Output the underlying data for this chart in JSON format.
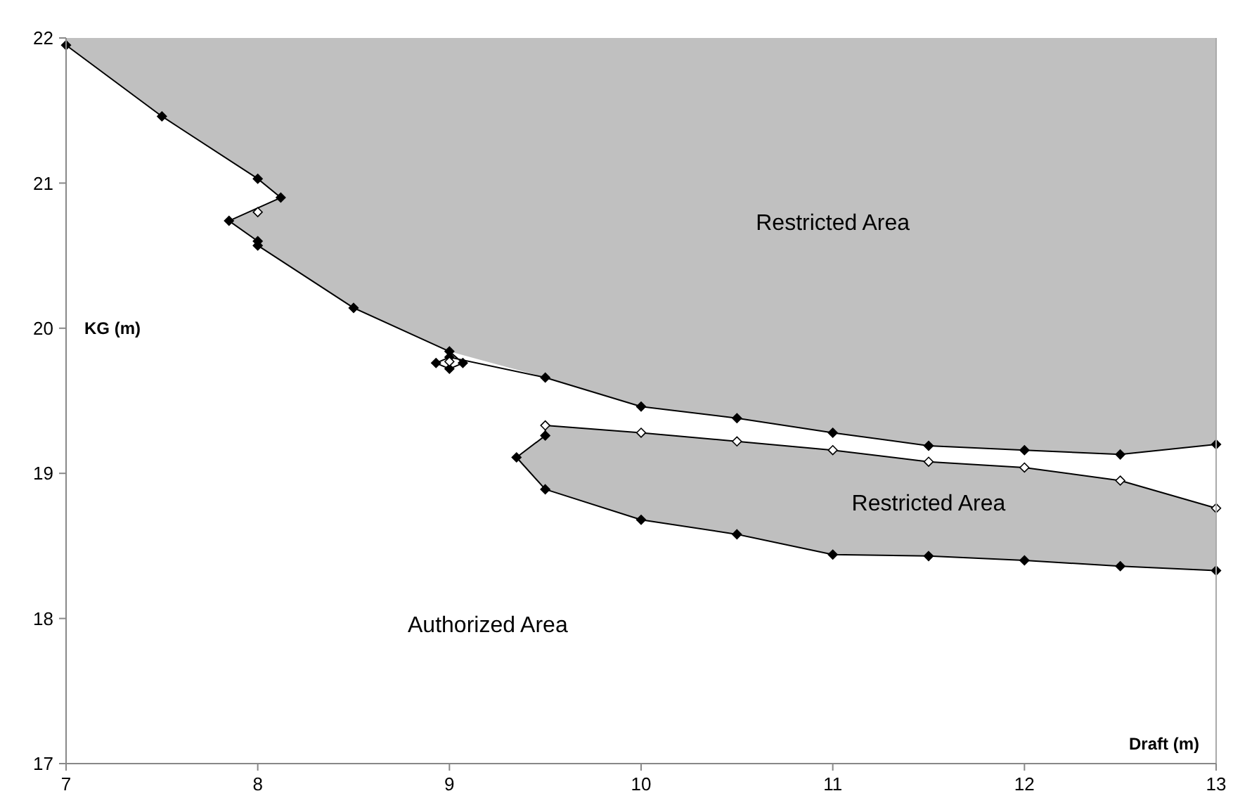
{
  "chart_data": {
    "type": "line",
    "xlabel": "Draft (m)",
    "ylabel": "KG (m)",
    "xlim": [
      7,
      13
    ],
    "xticks": [
      7,
      8,
      9,
      10,
      11,
      12,
      13
    ],
    "ylim": [
      17,
      22
    ],
    "yticks": [
      17,
      18,
      19,
      20,
      21,
      22
    ],
    "grid": false,
    "annotations": [
      "Restricted Area",
      "Restricted Area",
      "Authorized Area"
    ],
    "series": [
      {
        "type": "area",
        "color": "#c0c0c0",
        "x": [
          7,
          7.5,
          8,
          8.12,
          7.85,
          8,
          8,
          8.5,
          9,
          9.5,
          10,
          10.5,
          11,
          11.5,
          12,
          12.5,
          13,
          13,
          7
        ],
        "values": [
          21.95,
          21.46,
          21.03,
          20.9,
          20.74,
          20.6,
          20.57,
          20.14,
          19.84,
          19.66,
          19.46,
          19.38,
          19.28,
          19.19,
          19.16,
          19.13,
          19.2,
          22,
          22
        ]
      },
      {
        "type": "area",
        "color": "#bfbfbf",
        "line_style": "solid",
        "x": [
          9.5,
          10,
          10.5,
          11,
          11.5,
          12,
          12.5,
          13,
          13,
          12.5,
          12,
          11.5,
          11,
          10.5,
          10,
          9.5,
          9.35,
          9.5
        ],
        "values": [
          19.33,
          19.28,
          19.22,
          19.16,
          19.08,
          19.04,
          18.95,
          18.76,
          18.33,
          18.36,
          18.4,
          18.43,
          18.44,
          18.58,
          18.68,
          18.89,
          19.11,
          19.26
        ]
      },
      {
        "color": "#000000",
        "marker": "diamond",
        "x": [
          7,
          7.5,
          8,
          8.12,
          7.85,
          8,
          8,
          8.5,
          9,
          9.07,
          9,
          8.93,
          9,
          9.5,
          10,
          10.5,
          11,
          11.5,
          12,
          12.5,
          13
        ],
        "values": [
          21.95,
          21.46,
          21.03,
          20.9,
          20.74,
          20.6,
          20.57,
          20.14,
          19.84,
          19.76,
          19.72,
          19.76,
          19.8,
          19.66,
          19.46,
          19.38,
          19.28,
          19.19,
          19.16,
          19.13,
          19.2
        ]
      },
      {
        "type": "scatter",
        "color": "#000000",
        "marker": "diamond",
        "x": [
          9.5,
          9.35,
          9.5,
          10,
          10.5,
          11,
          11.5,
          12,
          12.5,
          13
        ],
        "values": [
          19.26,
          19.11,
          18.89,
          18.68,
          18.58,
          18.44,
          18.43,
          18.4,
          18.36,
          18.33
        ]
      },
      {
        "type": "scatter",
        "color": "#ffffff",
        "marker": "diamond",
        "x": [
          8,
          9,
          9.5,
          10,
          10.5,
          11,
          11.5,
          12,
          12.5,
          13
        ],
        "values": [
          20.8,
          19.77,
          19.33,
          19.28,
          19.22,
          19.16,
          19.08,
          19.04,
          18.95,
          18.76
        ]
      }
    ]
  }
}
